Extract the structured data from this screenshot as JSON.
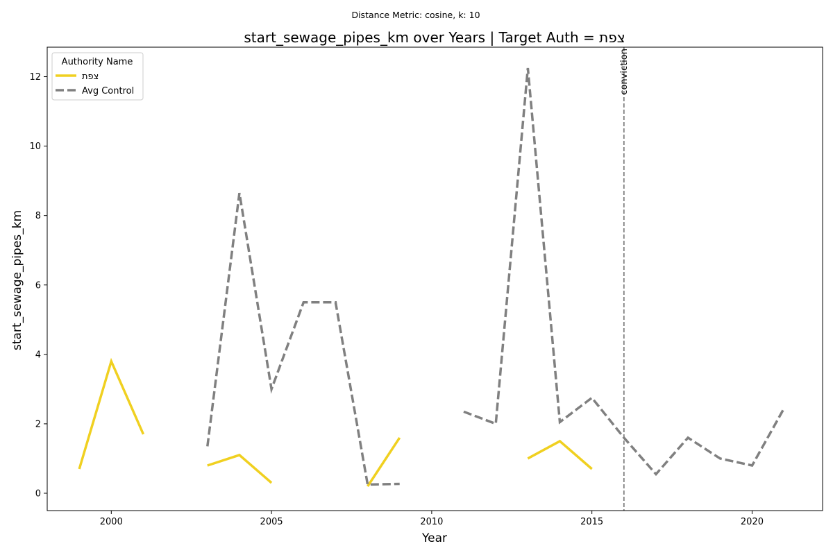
{
  "header": {
    "suptitle": "Distance Metric: cosine, k: 10"
  },
  "chart_data": {
    "type": "line",
    "title": "start_sewage_pipes_km over Years | Target Auth = צפת",
    "xlabel": "Year",
    "ylabel": "start_sewage_pipes_km",
    "xlim": [
      1998.0,
      2022.2
    ],
    "ylim": [
      -0.5,
      12.85
    ],
    "xticks": [
      2000,
      2005,
      2010,
      2015,
      2020
    ],
    "yticks": [
      0,
      2,
      4,
      6,
      8,
      10,
      12
    ],
    "grid": false,
    "legend": {
      "title": "Authority Name",
      "placement": "top-left"
    },
    "series": [
      {
        "name": "צפת",
        "color": "#f0d020",
        "style": "solid",
        "x": [
          1999,
          2000,
          2001,
          2002,
          2003,
          2004,
          2005,
          2006,
          2007,
          2008,
          2009,
          2010,
          2011,
          2012,
          2013,
          2014,
          2015
        ],
        "values": [
          0.7,
          3.8,
          1.7,
          null,
          0.8,
          1.1,
          0.3,
          null,
          null,
          0.2,
          1.6,
          null,
          null,
          null,
          1.0,
          1.5,
          0.7
        ]
      },
      {
        "name": "Avg Control",
        "color": "#808080",
        "style": "dashed",
        "x": [
          2003,
          2004,
          2005,
          2006,
          2007,
          2008,
          2009,
          2010,
          2011,
          2012,
          2013,
          2014,
          2015,
          2016,
          2017,
          2018,
          2019,
          2020,
          2021
        ],
        "values": [
          1.35,
          8.65,
          3.0,
          5.5,
          5.5,
          0.25,
          0.27,
          null,
          2.35,
          2.0,
          12.25,
          2.05,
          2.75,
          1.6,
          0.55,
          1.6,
          1.0,
          0.8,
          2.45
        ]
      }
    ],
    "annotations": [
      {
        "type": "vline",
        "x": 2016,
        "label": "conviction",
        "color": "#808080"
      }
    ]
  }
}
